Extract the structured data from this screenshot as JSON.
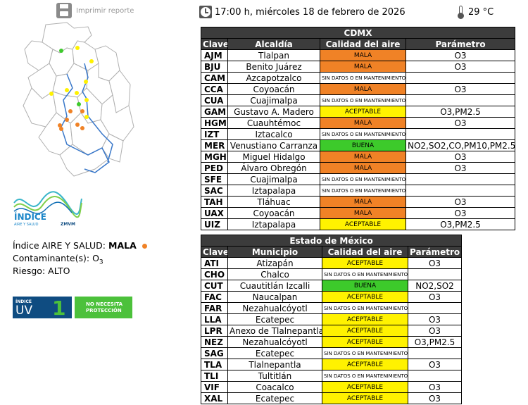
{
  "print": {
    "label": "Imprimir reporte"
  },
  "header": {
    "datetime": "17:00 h, miércoles 18 de febrero de 2026",
    "temperature": "29 °C"
  },
  "cdmx": {
    "title": "CDMX",
    "headers": [
      "Clave",
      "Alcaldía",
      "Calidad del aire",
      "Parámetro"
    ],
    "rows": [
      {
        "clave": "AJM",
        "name": "Tlalpan",
        "calidad": "MALA",
        "param": "O3"
      },
      {
        "clave": "BJU",
        "name": "Benito Juárez",
        "calidad": "MALA",
        "param": "O3"
      },
      {
        "clave": "CAM",
        "name": "Azcapotzalco",
        "calidad": "SIN DATOS O EN MANTENIMIENTO",
        "param": ""
      },
      {
        "clave": "CCA",
        "name": "Coyoacán",
        "calidad": "MALA",
        "param": "O3"
      },
      {
        "clave": "CUA",
        "name": "Cuajimalpa",
        "calidad": "SIN DATOS O EN MANTENIMIENTO",
        "param": ""
      },
      {
        "clave": "GAM",
        "name": "Gustavo A. Madero",
        "calidad": "ACEPTABLE",
        "param": "O3,PM2.5"
      },
      {
        "clave": "HGM",
        "name": "Cuauhtémoc",
        "calidad": "MALA",
        "param": "O3"
      },
      {
        "clave": "IZT",
        "name": "Iztacalco",
        "calidad": "SIN DATOS O EN MANTENIMIENTO",
        "param": ""
      },
      {
        "clave": "MER",
        "name": "Venustiano Carranza",
        "calidad": "BUENA",
        "param": "NO2,SO2,CO,PM10,PM2.5"
      },
      {
        "clave": "MGH",
        "name": "Miguel Hidalgo",
        "calidad": "MALA",
        "param": "O3"
      },
      {
        "clave": "PED",
        "name": "Álvaro Obregón",
        "calidad": "MALA",
        "param": "O3"
      },
      {
        "clave": "SFE",
        "name": "Cuajimalpa",
        "calidad": "SIN DATOS O EN MANTENIMIENTO",
        "param": ""
      },
      {
        "clave": "SAC",
        "name": "Iztapalapa",
        "calidad": "SIN DATOS O EN MANTENIMIENTO",
        "param": ""
      },
      {
        "clave": "TAH",
        "name": "Tláhuac",
        "calidad": "MALA",
        "param": "O3"
      },
      {
        "clave": "UAX",
        "name": "Coyoacán",
        "calidad": "MALA",
        "param": "O3"
      },
      {
        "clave": "UIZ",
        "name": "Iztapalapa",
        "calidad": "ACEPTABLE",
        "param": "O3,PM2.5"
      }
    ]
  },
  "edomex": {
    "title": "Estado de México",
    "headers": [
      "Clave",
      "Municipio",
      "Calidad del aire",
      "Parámetro"
    ],
    "rows": [
      {
        "clave": "ATI",
        "name": "Atizapán",
        "calidad": "ACEPTABLE",
        "param": "O3"
      },
      {
        "clave": "CHO",
        "name": "Chalco",
        "calidad": "SIN DATOS O EN MANTENIMIENTO",
        "param": ""
      },
      {
        "clave": "CUT",
        "name": "Cuautitlán Izcalli",
        "calidad": "BUENA",
        "param": "NO2,SO2"
      },
      {
        "clave": "FAC",
        "name": "Naucalpan",
        "calidad": "ACEPTABLE",
        "param": "O3"
      },
      {
        "clave": "FAR",
        "name": "Nezahualcóyotl",
        "calidad": "SIN DATOS O EN MANTENIMIENTO",
        "param": ""
      },
      {
        "clave": "LLA",
        "name": "Ecatepec",
        "calidad": "ACEPTABLE",
        "param": "O3"
      },
      {
        "clave": "LPR",
        "name": "Anexo de Tlalnepantla",
        "calidad": "ACEPTABLE",
        "param": "O3"
      },
      {
        "clave": "NEZ",
        "name": "Nezahualcóyotl",
        "calidad": "ACEPTABLE",
        "param": "O3,PM2.5"
      },
      {
        "clave": "SAG",
        "name": "Ecatepec",
        "calidad": "SIN DATOS O EN MANTENIMIENTO",
        "param": ""
      },
      {
        "clave": "TLA",
        "name": "Tlalnepantla",
        "calidad": "ACEPTABLE",
        "param": "O3"
      },
      {
        "clave": "TLI",
        "name": "Tultitlán",
        "calidad": "SIN DATOS O EN MANTENIMIENTO",
        "param": ""
      },
      {
        "clave": "VIF",
        "name": "Coacalco",
        "calidad": "ACEPTABLE",
        "param": "O3"
      },
      {
        "clave": "XAL",
        "name": "Ecatepec",
        "calidad": "ACEPTABLE",
        "param": "O3"
      }
    ]
  },
  "info": {
    "aq_label": "Índice AIRE Y SALUD:",
    "aq_value": "MALA",
    "contaminant_label": "Contaminante(s):",
    "contaminant_value": "O",
    "contaminant_sub": "3",
    "risk_label": "Riesgo:",
    "risk_value": "ALTO"
  },
  "logo": {
    "word": "ÍNDICE",
    "sub": "AIRE Y SALUD",
    "brand": "ZMVM"
  },
  "uv": {
    "label_top": "ÍNDICE",
    "label_uv": "UV",
    "value": "1",
    "message_line1": "NO NECESITA",
    "message_line2": "PROTECCIÓN"
  },
  "colors": {
    "mala": "#f08226",
    "aceptable": "#fff200",
    "buena": "#3dca2b",
    "header": "#3c3c3c",
    "uv_blue": "#0f4c81",
    "uv_green": "#4cc13b"
  }
}
